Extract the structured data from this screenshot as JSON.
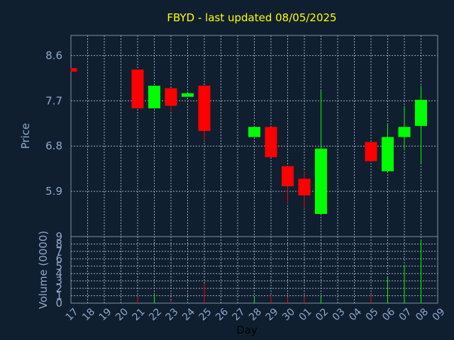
{
  "chart_data": {
    "type": "candlestick",
    "title": "FBYD - last updated 08/05/2025",
    "price_axis": {
      "label": "Price",
      "ticks": [
        5.9,
        6.8,
        7.7,
        8.6
      ],
      "ylim": [
        5.0,
        9.0
      ]
    },
    "volume_axis": {
      "label": "Volume (0000)",
      "ticks": [
        0,
        1,
        2,
        3,
        4,
        5,
        6,
        7,
        8,
        9
      ],
      "ylim": [
        0,
        9
      ]
    },
    "x_axis": {
      "label": "Day",
      "ticks": [
        "17",
        "18",
        "19",
        "20",
        "21",
        "22",
        "23",
        "24",
        "25",
        "26",
        "27",
        "28",
        "29",
        "30",
        "01",
        "02",
        "03",
        "04",
        "05",
        "06",
        "07",
        "08",
        "09"
      ]
    },
    "grid": true,
    "candles": [
      {
        "day": "17",
        "open": 8.35,
        "high": 8.35,
        "low": 8.28,
        "close": 8.28,
        "volume": 0
      },
      {
        "day": "21",
        "open": 8.32,
        "high": 8.32,
        "low": 7.55,
        "close": 7.55,
        "volume": 0.9
      },
      {
        "day": "22",
        "open": 7.55,
        "high": 8.0,
        "low": 7.55,
        "close": 8.0,
        "volume": 1.2
      },
      {
        "day": "23",
        "open": 7.95,
        "high": 7.95,
        "low": 7.5,
        "close": 7.6,
        "volume": 0.4
      },
      {
        "day": "24",
        "open": 7.78,
        "high": 7.88,
        "low": 7.78,
        "close": 7.85,
        "volume": 0.2
      },
      {
        "day": "25",
        "open": 8.0,
        "high": 8.0,
        "low": 6.9,
        "close": 7.1,
        "volume": 2.7
      },
      {
        "day": "28",
        "open": 6.98,
        "high": 7.18,
        "low": 6.98,
        "close": 7.18,
        "volume": 0.8
      },
      {
        "day": "29",
        "open": 7.18,
        "high": 7.18,
        "low": 6.58,
        "close": 6.58,
        "volume": 1.0
      },
      {
        "day": "30",
        "open": 6.4,
        "high": 6.4,
        "low": 5.65,
        "close": 6.0,
        "volume": 0.9
      },
      {
        "day": "01",
        "open": 6.15,
        "high": 6.3,
        "low": 5.55,
        "close": 5.82,
        "volume": 0.9
      },
      {
        "day": "02",
        "open": 5.45,
        "high": 7.9,
        "low": 5.45,
        "close": 6.75,
        "volume": 0.9
      },
      {
        "day": "05",
        "open": 6.88,
        "high": 6.88,
        "low": 6.5,
        "close": 6.5,
        "volume": 1.1
      },
      {
        "day": "06",
        "open": 6.3,
        "high": 7.25,
        "low": 6.3,
        "close": 6.98,
        "volume": 3.6
      },
      {
        "day": "07",
        "open": 6.98,
        "high": 7.6,
        "low": 6.72,
        "close": 7.18,
        "volume": 5.2
      },
      {
        "day": "08",
        "open": 7.2,
        "high": 8.0,
        "low": 6.45,
        "close": 7.72,
        "volume": 8.6
      }
    ]
  },
  "colors": {
    "background": "#0f1f2f",
    "plot_border": "#7f8fa8",
    "grid": "#c8d0dc",
    "up": "#00ff00",
    "down": "#ff0000",
    "title": "#ffff00",
    "axis_text": "#8fa8cc",
    "day_label": "#000000"
  }
}
